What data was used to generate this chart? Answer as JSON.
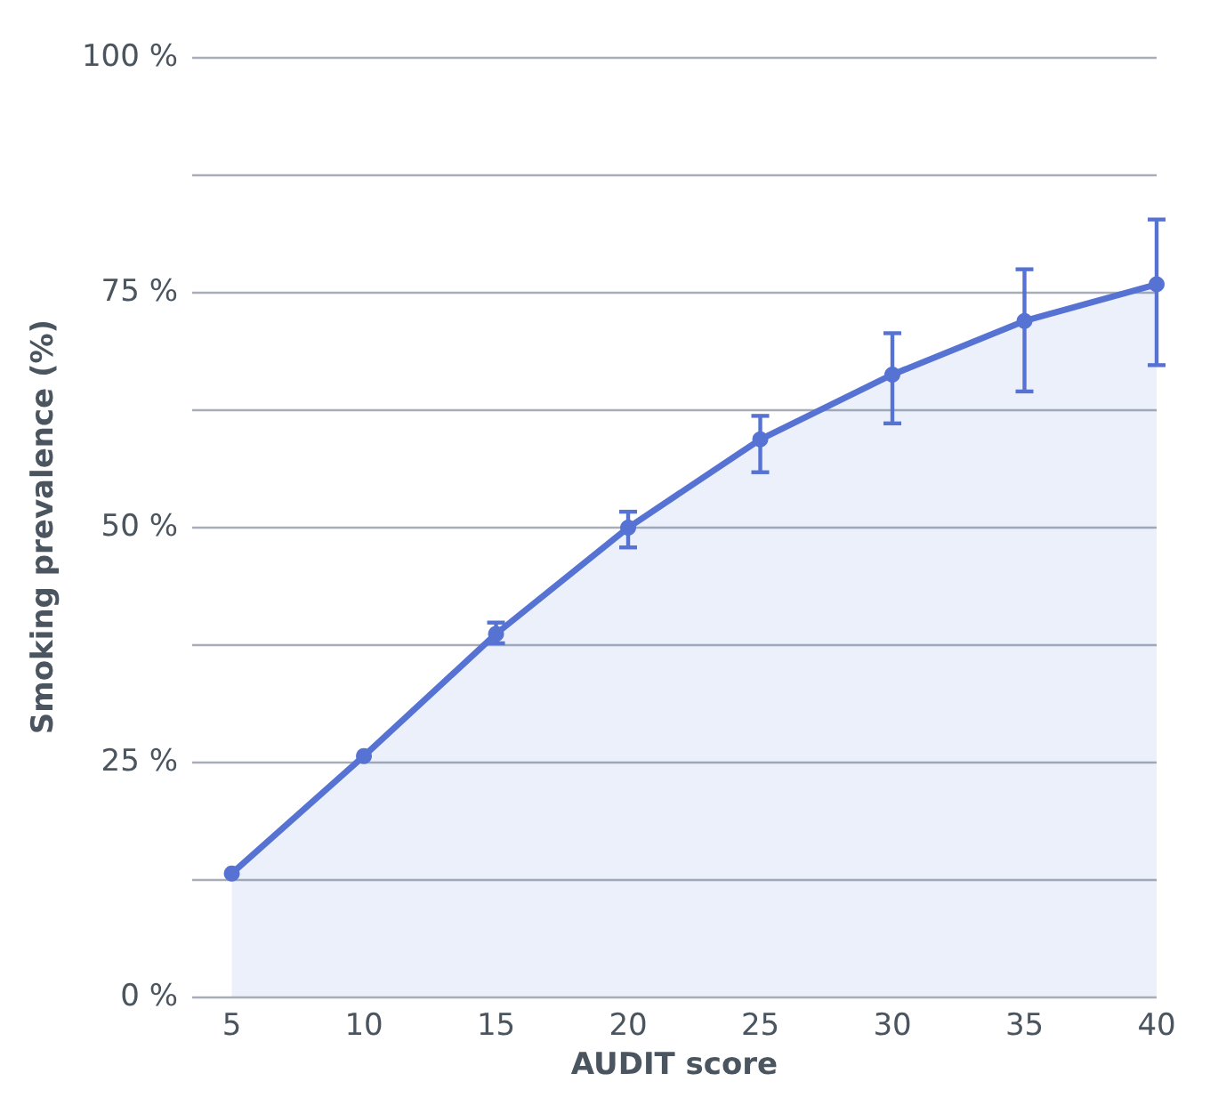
{
  "chart_data": {
    "type": "area",
    "xlabel": "AUDIT score",
    "ylabel": "Smoking prevalence (%)",
    "x": [
      5,
      10,
      15,
      20,
      25,
      30,
      35,
      40
    ],
    "series": [
      {
        "color": "#5673d4",
        "values": [
          13.1,
          25.6,
          38.6,
          49.9,
          59.3,
          66.2,
          71.9,
          75.8
        ],
        "errors": [
          null,
          null,
          [
            37.6,
            39.8
          ],
          [
            47.8,
            51.6
          ],
          [
            55.8,
            61.8
          ],
          [
            61.0,
            70.6
          ],
          [
            64.4,
            77.4
          ],
          [
            67.2,
            82.7
          ]
        ]
      }
    ],
    "xlim": [
      3.5,
      40
    ],
    "xticks": [
      5,
      10,
      15,
      20,
      25,
      30,
      35,
      40
    ],
    "ylim": [
      0,
      100
    ],
    "yticks": [
      {
        "value": 0,
        "label": "0 %"
      },
      {
        "value": 12.5,
        "label": null
      },
      {
        "value": 25,
        "label": "25 %"
      },
      {
        "value": 37.5,
        "label": null
      },
      {
        "value": 50,
        "label": "50 %"
      },
      {
        "value": 62.5,
        "label": null
      },
      {
        "value": 75,
        "label": "75 %"
      },
      {
        "value": 87.5,
        "label": null
      },
      {
        "value": 100,
        "label": "100 %"
      }
    ],
    "grid": "y",
    "marker": "circle",
    "line_style": "solid"
  }
}
